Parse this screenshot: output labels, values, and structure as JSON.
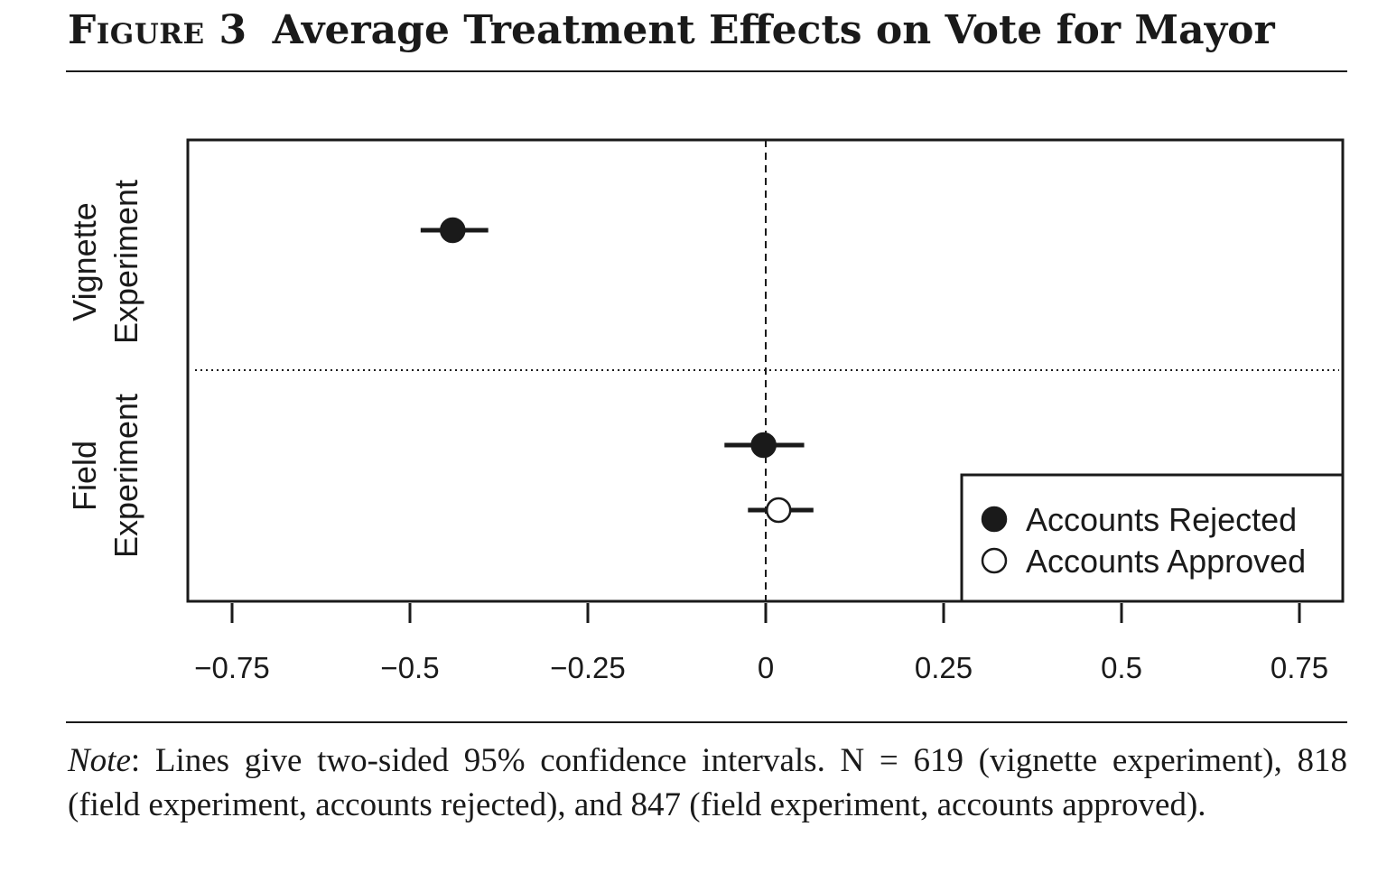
{
  "figure": {
    "number": "Figure 3",
    "title": "Average Treatment Effects on Vote for Mayor"
  },
  "note": {
    "label": "Note",
    "text": ": Lines give two-sided 95% confidence intervals. N = 619 (vignette experiment), 818 (field experiment, accounts rejected), and 847 (field experiment, accounts approved)."
  },
  "chart_data": {
    "type": "scatter",
    "subtype": "coefficient-plot-with-confidence-intervals",
    "title": "",
    "xlabel": "",
    "ylabel": "",
    "xlim": [
      -0.82,
      0.81
    ],
    "xticks": [
      -0.75,
      -0.5,
      -0.25,
      0,
      0.25,
      0.5,
      0.75
    ],
    "xtick_labels": [
      "−0.75",
      "−0.5",
      "−0.25",
      "0",
      "0.25",
      "0.5",
      "0.75"
    ],
    "reference_line_x": 0,
    "groups": [
      {
        "label_lines": [
          "Vignette",
          "Experiment"
        ]
      },
      {
        "label_lines": [
          "Field",
          "Experiment"
        ]
      }
    ],
    "series": [
      {
        "name": "Accounts Rejected",
        "marker": "filled-circle",
        "color": "#1a1a1a",
        "points": [
          {
            "group": 0,
            "estimate": -0.44,
            "ci": [
              -0.485,
              -0.39
            ]
          },
          {
            "group": 1,
            "estimate": -0.003,
            "ci": [
              -0.058,
              0.054
            ]
          }
        ]
      },
      {
        "name": "Accounts Approved",
        "marker": "open-circle",
        "color": "#1a1a1a",
        "points": [
          {
            "group": 1,
            "estimate": 0.018,
            "ci": [
              -0.025,
              0.067
            ]
          }
        ]
      }
    ],
    "legend": {
      "position": "bottom-right"
    },
    "grid": false
  }
}
